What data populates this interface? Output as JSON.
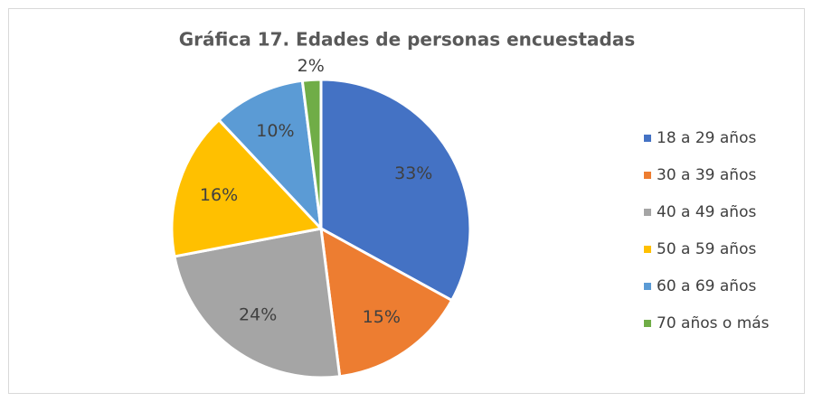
{
  "chart_data": {
    "type": "pie",
    "title": "Gráfica 17. Edades de personas encuestadas",
    "categories": [
      "18 a 29 años",
      "30 a 39 años",
      "40 a 49 años",
      "50 a 59 años",
      "60 a 69 años",
      "70 años o más"
    ],
    "values": [
      33,
      15,
      24,
      16,
      10,
      2
    ],
    "value_labels": [
      "33%",
      "15%",
      "24%",
      "16%",
      "10%",
      "2%"
    ],
    "colors": [
      "#4472c4",
      "#ed7d31",
      "#a5a5a5",
      "#ffc000",
      "#5b9bd5",
      "#70ad47"
    ],
    "legend": "right"
  }
}
